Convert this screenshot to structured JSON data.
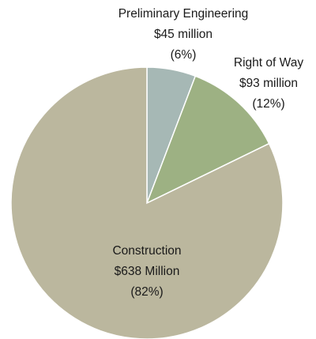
{
  "chart_data": {
    "type": "pie",
    "categories": [
      "Preliminary Engineering",
      "Right of Way",
      "Construction"
    ],
    "values": [
      45,
      93,
      638
    ],
    "value_labels": [
      "$45 million",
      "$93 million",
      "$638 Million"
    ],
    "percent_labels": [
      "(6%)",
      "(12%)",
      "(82%)"
    ],
    "colors": [
      "#a6b8b5",
      "#9db183",
      "#bbb79e"
    ]
  }
}
